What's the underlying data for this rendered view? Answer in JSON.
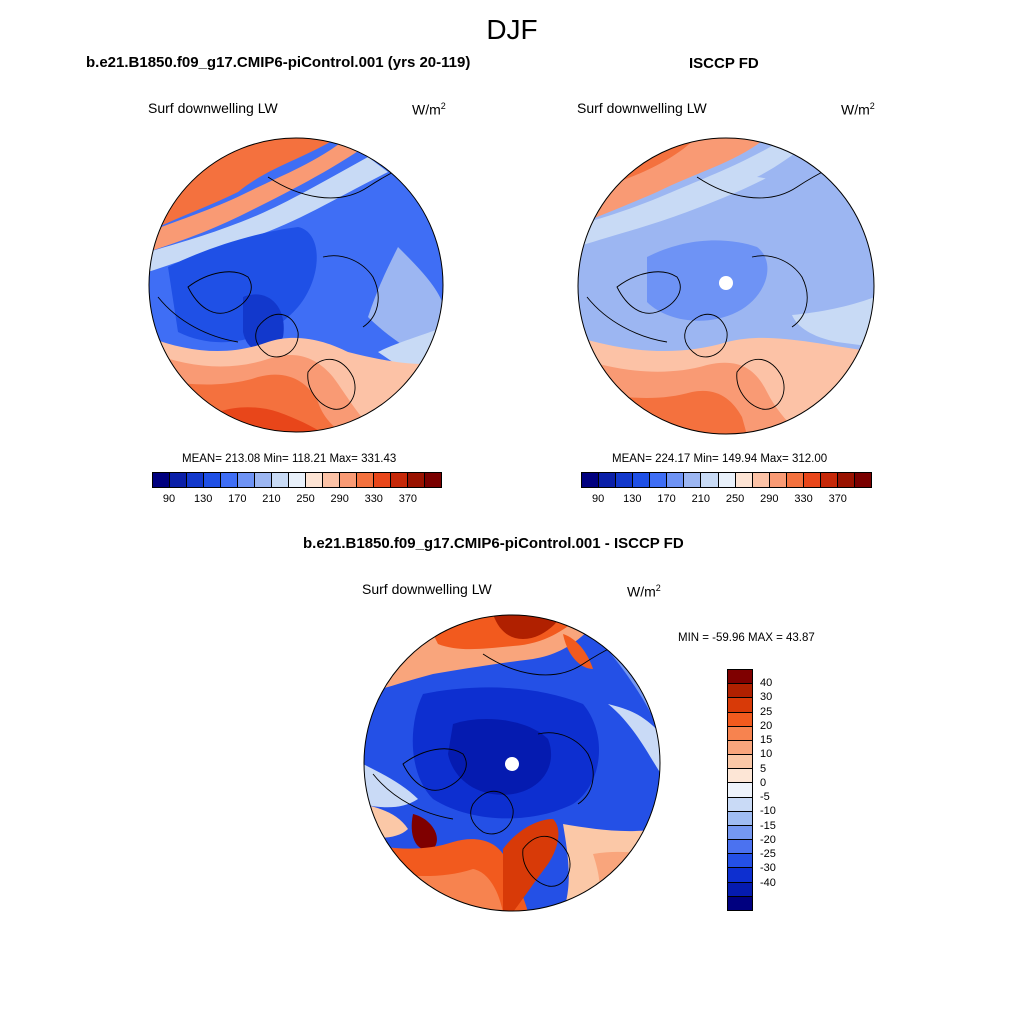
{
  "season": "DJF",
  "panels": {
    "model": {
      "case": "b.e21.B1850.f09_g17.CMIP6-piControl.001 (yrs 20-119)",
      "variable": "Surf downwelling LW",
      "units_base": "W/m",
      "units_exp": "2",
      "stats": "MEAN= 213.08  Min= 118.21  Max= 331.43"
    },
    "obs": {
      "case": "ISCCP FD",
      "variable": "Surf downwelling LW",
      "units_base": "W/m",
      "units_exp": "2",
      "stats": "MEAN= 224.17  Min= 149.94  Max= 312.00"
    },
    "diff": {
      "case": "b.e21.B1850.f09_g17.CMIP6-piControl.001 - ISCCP FD",
      "variable": "Surf downwelling LW",
      "units_base": "W/m",
      "units_exp": "2",
      "stats": "MIN = -59.96 MAX =  43.87"
    }
  },
  "colorbar_top": {
    "colors": [
      "#00007f",
      "#0a1fa8",
      "#1238cc",
      "#1f50e6",
      "#3f6ef5",
      "#6e93f5",
      "#9cb6f2",
      "#c8daf5",
      "#e8f0fa",
      "#fde3d3",
      "#fcc2a6",
      "#f99a74",
      "#f4713e",
      "#e8461a",
      "#c62808",
      "#991200",
      "#7a0000"
    ],
    "tick_labels": [
      "90",
      "130",
      "170",
      "210",
      "250",
      "290",
      "330",
      "370"
    ]
  },
  "colorbar_diff": {
    "colors": [
      "#7f0000",
      "#b02000",
      "#d83a08",
      "#f25a1e",
      "#f7834f",
      "#f9a57c",
      "#fbc8a7",
      "#fde6d6",
      "#eef3fb",
      "#c9daf6",
      "#9fbcf3",
      "#7598f2",
      "#4b72f0",
      "#2450e6",
      "#0d2fd0",
      "#051bb0",
      "#00007f"
    ],
    "tick_labels": [
      "40",
      "30",
      "25",
      "20",
      "15",
      "10",
      "5",
      "0",
      "-5",
      "-10",
      "-15",
      "-20",
      "-25",
      "-30",
      "-40"
    ]
  }
}
